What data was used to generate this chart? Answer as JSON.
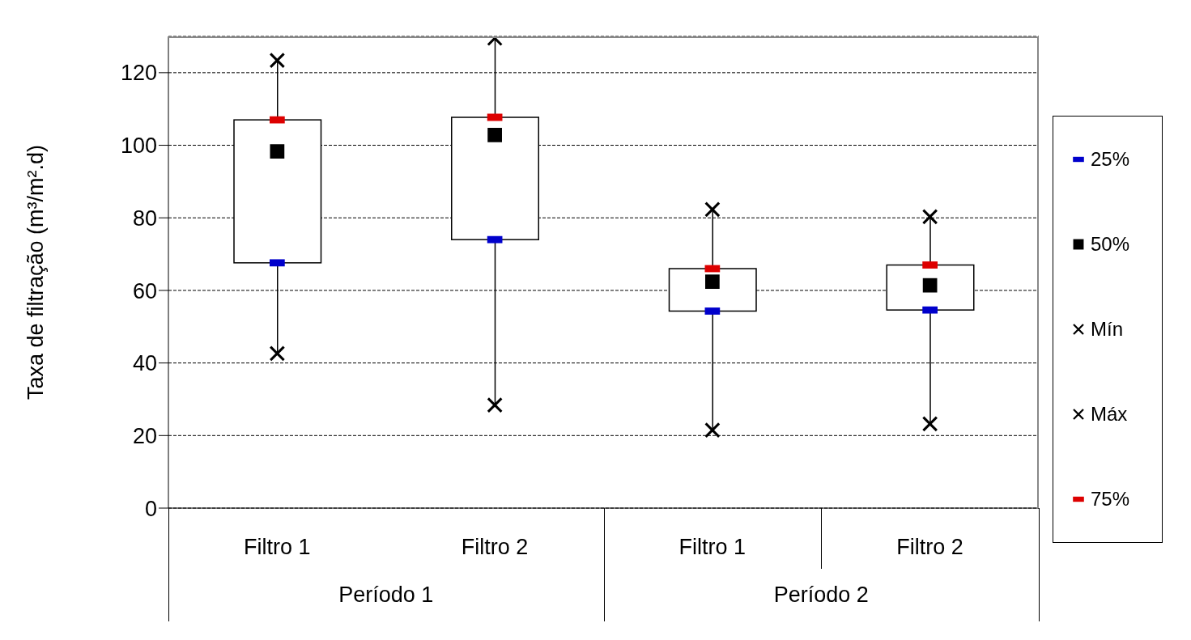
{
  "chart_data": {
    "type": "box",
    "ylabel": "Taxa de filtração (m³/m².d)",
    "categories": [
      "Filtro 1",
      "Filtro 2",
      "Filtro 1",
      "Filtro 2"
    ],
    "annotations": [
      "Período 1",
      "Período 2"
    ],
    "boxes": [
      {
        "low": 42.6,
        "q1": 67.6,
        "q3": 107,
        "high": 123.4
      },
      {
        "low": 28.4,
        "q1": 74,
        "q3": 107.7,
        "high": 129.5
      },
      {
        "low": 21.5,
        "q1": 54.3,
        "q3": 66,
        "high": 82.3
      },
      {
        "low": 23.2,
        "q1": 54.6,
        "q3": 67,
        "high": 80.3
      }
    ],
    "series": [
      {
        "name": "25%",
        "type": "scatter",
        "color": "#0000cc",
        "values": [
          67.6,
          74,
          54.3,
          54.6
        ]
      },
      {
        "name": "50%",
        "type": "scatter",
        "marker": "square",
        "color": "#000000",
        "values": [
          98.3,
          102.8,
          62.4,
          61.4
        ]
      },
      {
        "name": "Mín",
        "type": "scatter",
        "marker": "cross",
        "color": "#000000",
        "values": [
          42.6,
          28.4,
          21.5,
          23.2
        ]
      },
      {
        "name": "Máx",
        "type": "scatter",
        "marker": "cross",
        "color": "#000000",
        "values": [
          123.4,
          129.5,
          82.3,
          80.3
        ]
      },
      {
        "name": "75%",
        "type": "scatter",
        "color": "#dd0000",
        "values": [
          107,
          107.7,
          66,
          67
        ]
      }
    ],
    "ylim": [
      0,
      130
    ],
    "yticks": [
      0,
      20,
      40,
      60,
      80,
      100,
      120
    ],
    "grid": "y",
    "legend": "right"
  }
}
